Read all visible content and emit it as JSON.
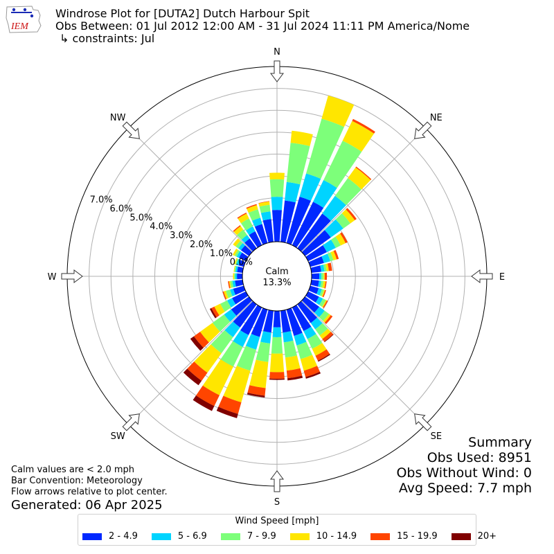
{
  "header": {
    "logo_text": "IEM",
    "title": "Windrose Plot for [DUTA2] Dutch Harbour Spit",
    "subtitle": "Obs Between: 01 Jul 2012 12:00 AM - 31 Jul 2024 11:11 PM America/Nome",
    "constraints": "↳ constraints: Jul"
  },
  "colors": {
    "bins": [
      "#0028ff",
      "#00d4ff",
      "#7dff7a",
      "#ffe600",
      "#ff4500",
      "#800000"
    ],
    "grid": "#b0b0b0"
  },
  "chart_data": {
    "type": "windrose",
    "radial_unit": "%",
    "radial_ticks": [
      "0.0%",
      "1.0%",
      "2.0%",
      "3.0%",
      "4.0%",
      "5.0%",
      "6.0%",
      "7.0%"
    ],
    "rmax": 8.0,
    "calm_label": "Calm",
    "calm_value": "13.3%",
    "compass": [
      "N",
      "NE",
      "E",
      "SE",
      "S",
      "SW",
      "W",
      "NW"
    ],
    "directions_deg": [
      0,
      10,
      20,
      30,
      40,
      50,
      60,
      70,
      80,
      90,
      100,
      110,
      120,
      130,
      140,
      150,
      160,
      170,
      180,
      190,
      200,
      210,
      220,
      230,
      240,
      250,
      260,
      270,
      280,
      290,
      300,
      310,
      320,
      330,
      340,
      350
    ],
    "speed_bins": [
      "2 - 4.9",
      "5 - 6.9",
      "7 - 9.9",
      "10 - 14.9",
      "15 - 19.9",
      "20+"
    ],
    "series": [
      {
        "name": "2 - 4.9",
        "values": [
          1.45,
          1.9,
          2.2,
          2.2,
          1.95,
          1.45,
          0.95,
          0.65,
          0.45,
          0.35,
          0.35,
          0.4,
          0.55,
          0.8,
          1.05,
          1.2,
          1.25,
          1.0,
          0.75,
          1.0,
          1.3,
          1.4,
          1.3,
          1.0,
          0.7,
          0.5,
          0.35,
          0.25,
          0.25,
          0.25,
          0.35,
          0.45,
          0.55,
          0.7,
          0.9,
          1.05
        ]
      },
      {
        "name": "5 - 6.9",
        "values": [
          0.6,
          0.85,
          1.1,
          1.1,
          1.0,
          0.7,
          0.45,
          0.3,
          0.15,
          0.1,
          0.1,
          0.15,
          0.2,
          0.3,
          0.35,
          0.4,
          0.45,
          0.45,
          0.45,
          0.5,
          0.6,
          0.6,
          0.55,
          0.4,
          0.25,
          0.15,
          0.12,
          0.08,
          0.08,
          0.1,
          0.12,
          0.15,
          0.2,
          0.25,
          0.3,
          0.35
        ]
      },
      {
        "name": "7 - 9.9",
        "values": [
          0.8,
          1.8,
          2.6,
          2.0,
          1.0,
          0.4,
          0.25,
          0.15,
          0.1,
          0.1,
          0.1,
          0.1,
          0.15,
          0.25,
          0.35,
          0.5,
          0.65,
          0.7,
          0.75,
          0.85,
          1.0,
          1.0,
          0.9,
          0.65,
          0.35,
          0.2,
          0.1,
          0.05,
          0.05,
          0.05,
          0.1,
          0.15,
          0.3,
          0.4,
          0.4,
          0.3
        ]
      },
      {
        "name": "10 - 14.9",
        "values": [
          0.3,
          0.55,
          1.1,
          1.0,
          0.6,
          0.25,
          0.25,
          0.15,
          0.1,
          0.05,
          0.1,
          0.05,
          0.05,
          0.1,
          0.2,
          0.35,
          0.55,
          0.6,
          0.85,
          1.2,
          1.5,
          1.45,
          1.1,
          0.7,
          0.3,
          0.1,
          0.05,
          0.05,
          0.03,
          0.05,
          0.1,
          0.15,
          0.2,
          0.25,
          0.2,
          0.15
        ]
      },
      {
        "name": "15 - 19.9",
        "values": [
          0.0,
          0.0,
          0.0,
          0.1,
          0.05,
          0.1,
          0.1,
          0.1,
          0.15,
          0.1,
          0.05,
          0.05,
          0.05,
          0.1,
          0.15,
          0.25,
          0.3,
          0.35,
          0.3,
          0.35,
          0.55,
          0.55,
          0.45,
          0.35,
          0.15,
          0.05,
          0.05,
          0.0,
          0.0,
          0.0,
          0.0,
          0.0,
          0.05,
          0.05,
          0.05,
          0.02
        ]
      },
      {
        "name": "20+",
        "values": [
          0.0,
          0.0,
          0.0,
          0.0,
          0.0,
          0.0,
          0.0,
          0.0,
          0.0,
          0.0,
          0.0,
          0.0,
          0.0,
          0.0,
          0.03,
          0.05,
          0.08,
          0.1,
          0.05,
          0.08,
          0.2,
          0.25,
          0.25,
          0.2,
          0.08,
          0.0,
          0.0,
          0.0,
          0.0,
          0.0,
          0.0,
          0.0,
          0.0,
          0.0,
          0.0,
          0.0
        ]
      }
    ]
  },
  "notes": {
    "line1": "Calm values are < 2.0 mph",
    "line2": "Bar Convention: Meteorology",
    "line3": "Flow arrows relative to plot center.",
    "generated": "Generated: 06 Apr 2025"
  },
  "summary": {
    "title": "Summary",
    "obs_used": "Obs Used: 8951",
    "obs_without_wind": "Obs Without Wind: 0",
    "avg_speed": "Avg Speed: 7.7 mph"
  },
  "legend": {
    "title": "Wind Speed [mph]",
    "items": [
      "2 - 4.9",
      "5 - 6.9",
      "7 - 9.9",
      "10 - 14.9",
      "15 - 19.9",
      "20+"
    ]
  }
}
